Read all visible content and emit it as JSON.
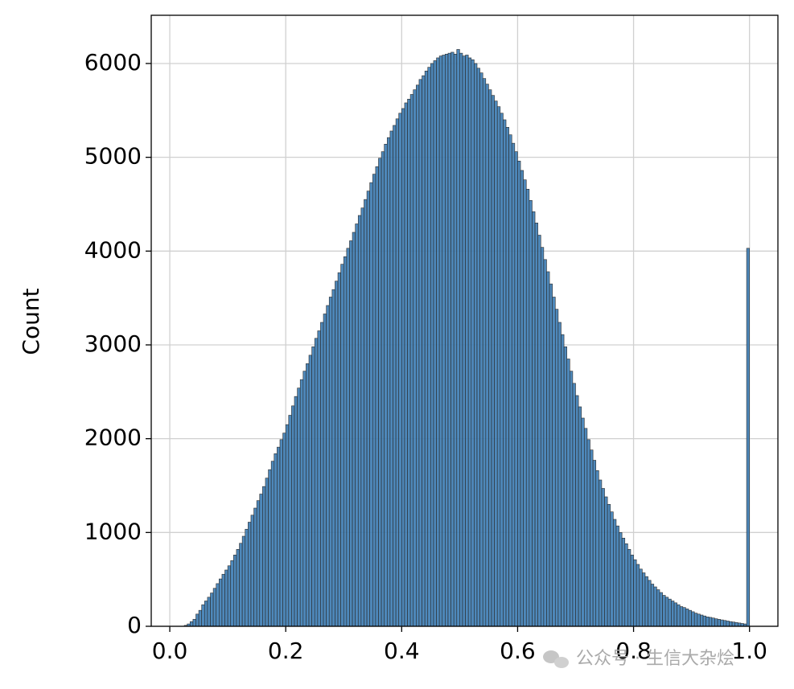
{
  "chart_data": {
    "type": "histogram",
    "ylabel": "Count",
    "bins": [
      0,
      0.005,
      0.01,
      0.015,
      0.02,
      0.025,
      0.03,
      0.035,
      0.04,
      0.045,
      0.05,
      0.055,
      0.06,
      0.065,
      0.07,
      0.075,
      0.08,
      0.085,
      0.09,
      0.095,
      0.1,
      0.105,
      0.11,
      0.115,
      0.12,
      0.125,
      0.13,
      0.135,
      0.14,
      0.145,
      0.15,
      0.155,
      0.16,
      0.165,
      0.17,
      0.175,
      0.18,
      0.185,
      0.19,
      0.195,
      0.2,
      0.205,
      0.21,
      0.215,
      0.22,
      0.225,
      0.23,
      0.235,
      0.24,
      0.245,
      0.25,
      0.255,
      0.26,
      0.265,
      0.27,
      0.275,
      0.28,
      0.285,
      0.29,
      0.295,
      0.3,
      0.305,
      0.31,
      0.315,
      0.32,
      0.325,
      0.33,
      0.335,
      0.34,
      0.345,
      0.35,
      0.355,
      0.36,
      0.365,
      0.37,
      0.375,
      0.38,
      0.385,
      0.39,
      0.395,
      0.4,
      0.405,
      0.41,
      0.415,
      0.42,
      0.425,
      0.43,
      0.435,
      0.44,
      0.445,
      0.45,
      0.455,
      0.46,
      0.465,
      0.47,
      0.475,
      0.48,
      0.485,
      0.49,
      0.495,
      0.5,
      0.505,
      0.51,
      0.515,
      0.52,
      0.525,
      0.53,
      0.535,
      0.54,
      0.545,
      0.55,
      0.555,
      0.56,
      0.565,
      0.57,
      0.575,
      0.58,
      0.585,
      0.59,
      0.595,
      0.6,
      0.605,
      0.61,
      0.615,
      0.62,
      0.625,
      0.63,
      0.635,
      0.64,
      0.645,
      0.65,
      0.655,
      0.66,
      0.665,
      0.67,
      0.675,
      0.68,
      0.685,
      0.69,
      0.695,
      0.7,
      0.705,
      0.71,
      0.715,
      0.72,
      0.725,
      0.73,
      0.735,
      0.74,
      0.745,
      0.75,
      0.755,
      0.76,
      0.765,
      0.77,
      0.775,
      0.78,
      0.785,
      0.79,
      0.795,
      0.8,
      0.805,
      0.81,
      0.815,
      0.82,
      0.825,
      0.83,
      0.835,
      0.84,
      0.845,
      0.85,
      0.855,
      0.86,
      0.865,
      0.87,
      0.875,
      0.88,
      0.885,
      0.89,
      0.895,
      0.9,
      0.905,
      0.91,
      0.915,
      0.92,
      0.925,
      0.93,
      0.935,
      0.94,
      0.945,
      0.95,
      0.955,
      0.96,
      0.965,
      0.97,
      0.975,
      0.98,
      0.985,
      0.99,
      0.995,
      1
    ],
    "values": [
      0,
      0,
      0,
      0,
      0,
      10,
      25,
      50,
      75,
      130,
      170,
      230,
      270,
      310,
      355,
      405,
      455,
      505,
      555,
      600,
      645,
      700,
      760,
      820,
      885,
      960,
      1035,
      1110,
      1185,
      1260,
      1340,
      1410,
      1490,
      1580,
      1670,
      1760,
      1840,
      1910,
      1990,
      2060,
      2150,
      2250,
      2350,
      2450,
      2540,
      2630,
      2720,
      2800,
      2890,
      2980,
      3070,
      3150,
      3240,
      3330,
      3420,
      3510,
      3590,
      3680,
      3770,
      3860,
      3940,
      4030,
      4110,
      4200,
      4290,
      4380,
      4460,
      4550,
      4640,
      4730,
      4820,
      4900,
      4990,
      5060,
      5140,
      5210,
      5280,
      5340,
      5410,
      5470,
      5520,
      5580,
      5620,
      5670,
      5720,
      5770,
      5830,
      5870,
      5920,
      5960,
      6000,
      6030,
      6060,
      6080,
      6090,
      6100,
      6110,
      6120,
      6100,
      6150,
      6110,
      6080,
      6090,
      6060,
      6040,
      6000,
      5950,
      5900,
      5840,
      5780,
      5720,
      5660,
      5600,
      5540,
      5470,
      5400,
      5320,
      5240,
      5150,
      5060,
      4960,
      4860,
      4760,
      4660,
      4540,
      4420,
      4300,
      4170,
      4040,
      3910,
      3780,
      3650,
      3510,
      3380,
      3240,
      3110,
      2980,
      2850,
      2720,
      2590,
      2460,
      2340,
      2220,
      2110,
      1990,
      1880,
      1770,
      1660,
      1560,
      1470,
      1380,
      1300,
      1220,
      1140,
      1070,
      1000,
      940,
      880,
      820,
      760,
      710,
      660,
      610,
      570,
      530,
      490,
      450,
      420,
      390,
      360,
      330,
      310,
      290,
      270,
      250,
      230,
      210,
      200,
      185,
      170,
      155,
      140,
      130,
      120,
      110,
      100,
      95,
      88,
      80,
      74,
      68,
      62,
      56,
      50,
      45,
      40,
      35,
      30,
      25,
      4030
    ],
    "color": "#3b7bb3",
    "xlim": [
      -0.032,
      1.049
    ],
    "ylim": [
      0,
      6514
    ],
    "xticks": [
      {
        "value": 0,
        "label": "0.0"
      },
      0.2,
      0.4,
      0.6,
      0.8,
      {
        "value": 1,
        "label": "1.0"
      }
    ],
    "yticks": [
      0,
      1000,
      2000,
      3000,
      4000,
      5000,
      6000
    ],
    "grid": true,
    "watermark": "公众号 · 生信大杂烩"
  }
}
